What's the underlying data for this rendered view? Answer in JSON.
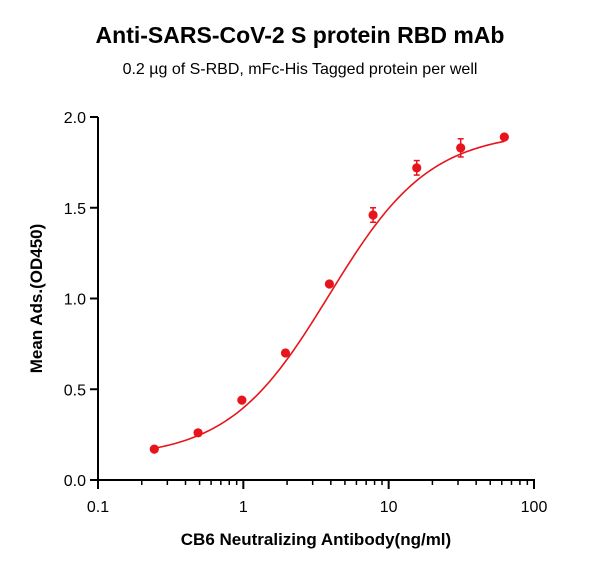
{
  "chart_data": {
    "type": "scatter",
    "title": "Anti-SARS-CoV-2 S protein RBD mAb",
    "subtitle": "0.2 µg of S-RBD, mFc-His Tagged protein per well",
    "xlabel": "CB6 Neutralizing Antibody(ng/ml)",
    "ylabel": "Mean Ads.(OD450)",
    "xscale": "log",
    "xlim": [
      0.1,
      100
    ],
    "ylim": [
      0.0,
      2.0
    ],
    "x_ticks": [
      "0.1",
      "1",
      "10",
      "100"
    ],
    "y_ticks": [
      "0.0",
      "0.5",
      "1.0",
      "1.5",
      "2.0"
    ],
    "grid": false,
    "series": [
      {
        "color": "#e8141b",
        "fit": "sigmoidal curve",
        "points": [
          {
            "x": 0.244,
            "y": 0.17,
            "err": 0.01
          },
          {
            "x": 0.488,
            "y": 0.26,
            "err": 0.01
          },
          {
            "x": 0.977,
            "y": 0.44,
            "err": 0.01
          },
          {
            "x": 1.95,
            "y": 0.7,
            "err": 0.01
          },
          {
            "x": 3.91,
            "y": 1.08,
            "err": 0.01
          },
          {
            "x": 7.81,
            "y": 1.46,
            "err": 0.04
          },
          {
            "x": 15.6,
            "y": 1.72,
            "err": 0.04
          },
          {
            "x": 31.3,
            "y": 1.83,
            "err": 0.05
          },
          {
            "x": 62.5,
            "y": 1.89,
            "err": 0.01
          }
        ]
      }
    ]
  }
}
